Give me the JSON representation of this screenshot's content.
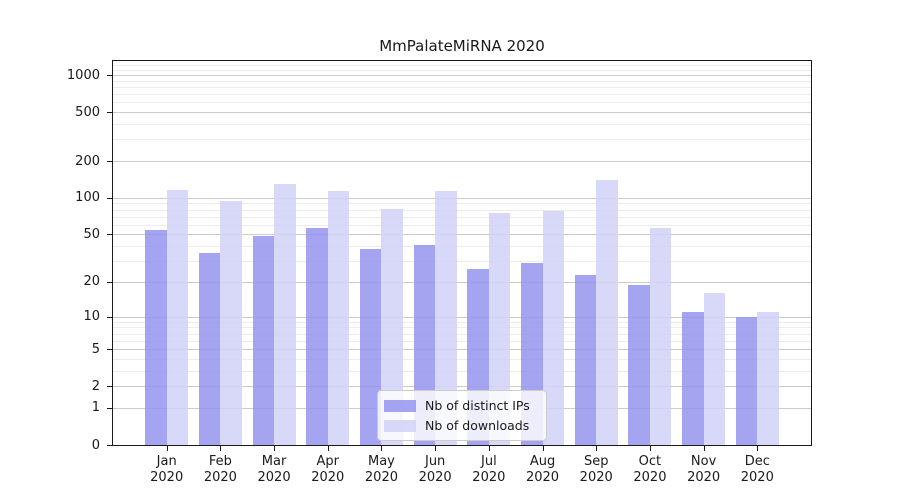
{
  "title": "MmPalateMiRNA 2020",
  "chart_data": {
    "type": "bar",
    "title": "MmPalateMiRNA 2020",
    "categories": [
      "Jan 2020",
      "Feb 2020",
      "Mar 2020",
      "Apr 2020",
      "May 2020",
      "Jun 2020",
      "Jul 2020",
      "Aug 2020",
      "Sep 2020",
      "Oct 2020",
      "Nov 2020",
      "Dec 2020"
    ],
    "x_tick_labels": [
      [
        "Jan",
        "2020"
      ],
      [
        "Feb",
        "2020"
      ],
      [
        "Mar",
        "2020"
      ],
      [
        "Apr",
        "2020"
      ],
      [
        "May",
        "2020"
      ],
      [
        "Jun",
        "2020"
      ],
      [
        "Jul",
        "2020"
      ],
      [
        "Aug",
        "2020"
      ],
      [
        "Sep",
        "2020"
      ],
      [
        "Oct",
        "2020"
      ],
      [
        "Nov",
        "2020"
      ],
      [
        "Dec",
        "2020"
      ]
    ],
    "series": [
      {
        "name": "Nb of distinct IPs",
        "color": "#9494ef",
        "values": [
          54,
          35,
          49,
          56,
          38,
          41,
          26,
          29,
          23,
          19,
          11,
          10
        ]
      },
      {
        "name": "Nb of downloads",
        "color": "#d1d1f8",
        "values": [
          117,
          95,
          130,
          113,
          81,
          113,
          75,
          78,
          141,
          56,
          16,
          11
        ]
      }
    ],
    "xlabel": "",
    "ylabel": "",
    "y_scale": "log10(1+x)",
    "ylim": [
      0,
      1300
    ],
    "y_ticks": [
      0,
      1,
      2,
      5,
      10,
      20,
      50,
      100,
      200,
      500,
      1000
    ],
    "y_minor_gridlines": [
      3,
      4,
      6,
      7,
      8,
      9,
      30,
      40,
      60,
      70,
      80,
      90,
      300,
      400,
      600,
      700,
      800,
      900,
      1100,
      1200
    ],
    "grid": "horizontal",
    "legend_position": "lower center",
    "colors": {
      "major_gridline": "#cccccc",
      "minor_gridline": "#ececec",
      "axis": "#1a1a1a",
      "background": "#ffffff"
    }
  }
}
